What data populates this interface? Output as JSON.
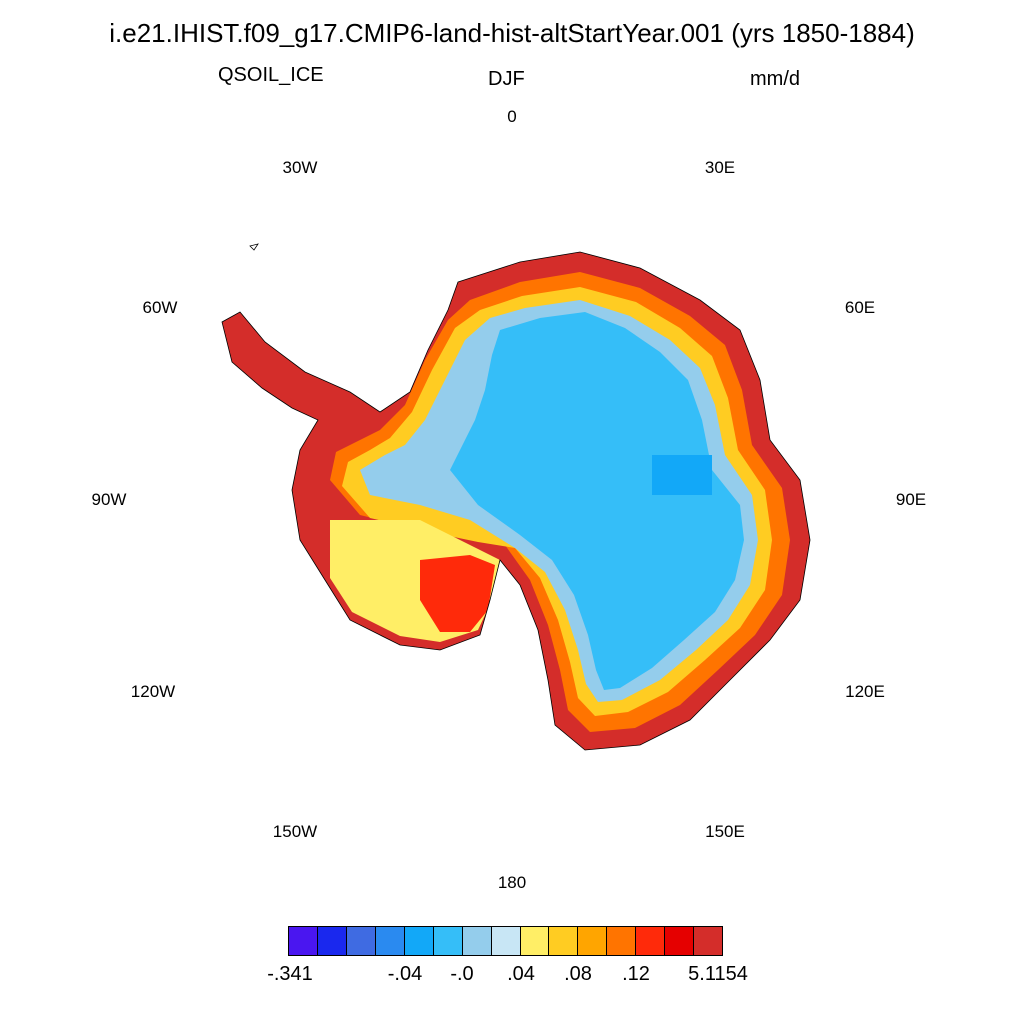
{
  "title": "i.e21.IHIST.f09_g17.CMIP6-land-hist-altStartYear.001 (yrs 1850-1884)",
  "variable": "QSOIL_ICE",
  "season": "DJF",
  "units": "mm/d",
  "longitude_labels": [
    "0",
    "30E",
    "60E",
    "90E",
    "120E",
    "150E",
    "180",
    "150W",
    "120W",
    "90W",
    "60W",
    "30W"
  ],
  "colorbar": {
    "colors": [
      "#4a16f0",
      "#1a28ee",
      "#3f6be2",
      "#2a8af0",
      "#12a8f8",
      "#35bef8",
      "#94cdec",
      "#c8e6f5",
      "#ffee66",
      "#ffcc22",
      "#ffa500",
      "#ff7400",
      "#ff2a0a",
      "#e50000",
      "#d42d2a"
    ],
    "labels": [
      "-.341",
      "-.04",
      "-.0",
      ".04",
      ".08",
      ".12",
      "5.1154"
    ]
  }
}
